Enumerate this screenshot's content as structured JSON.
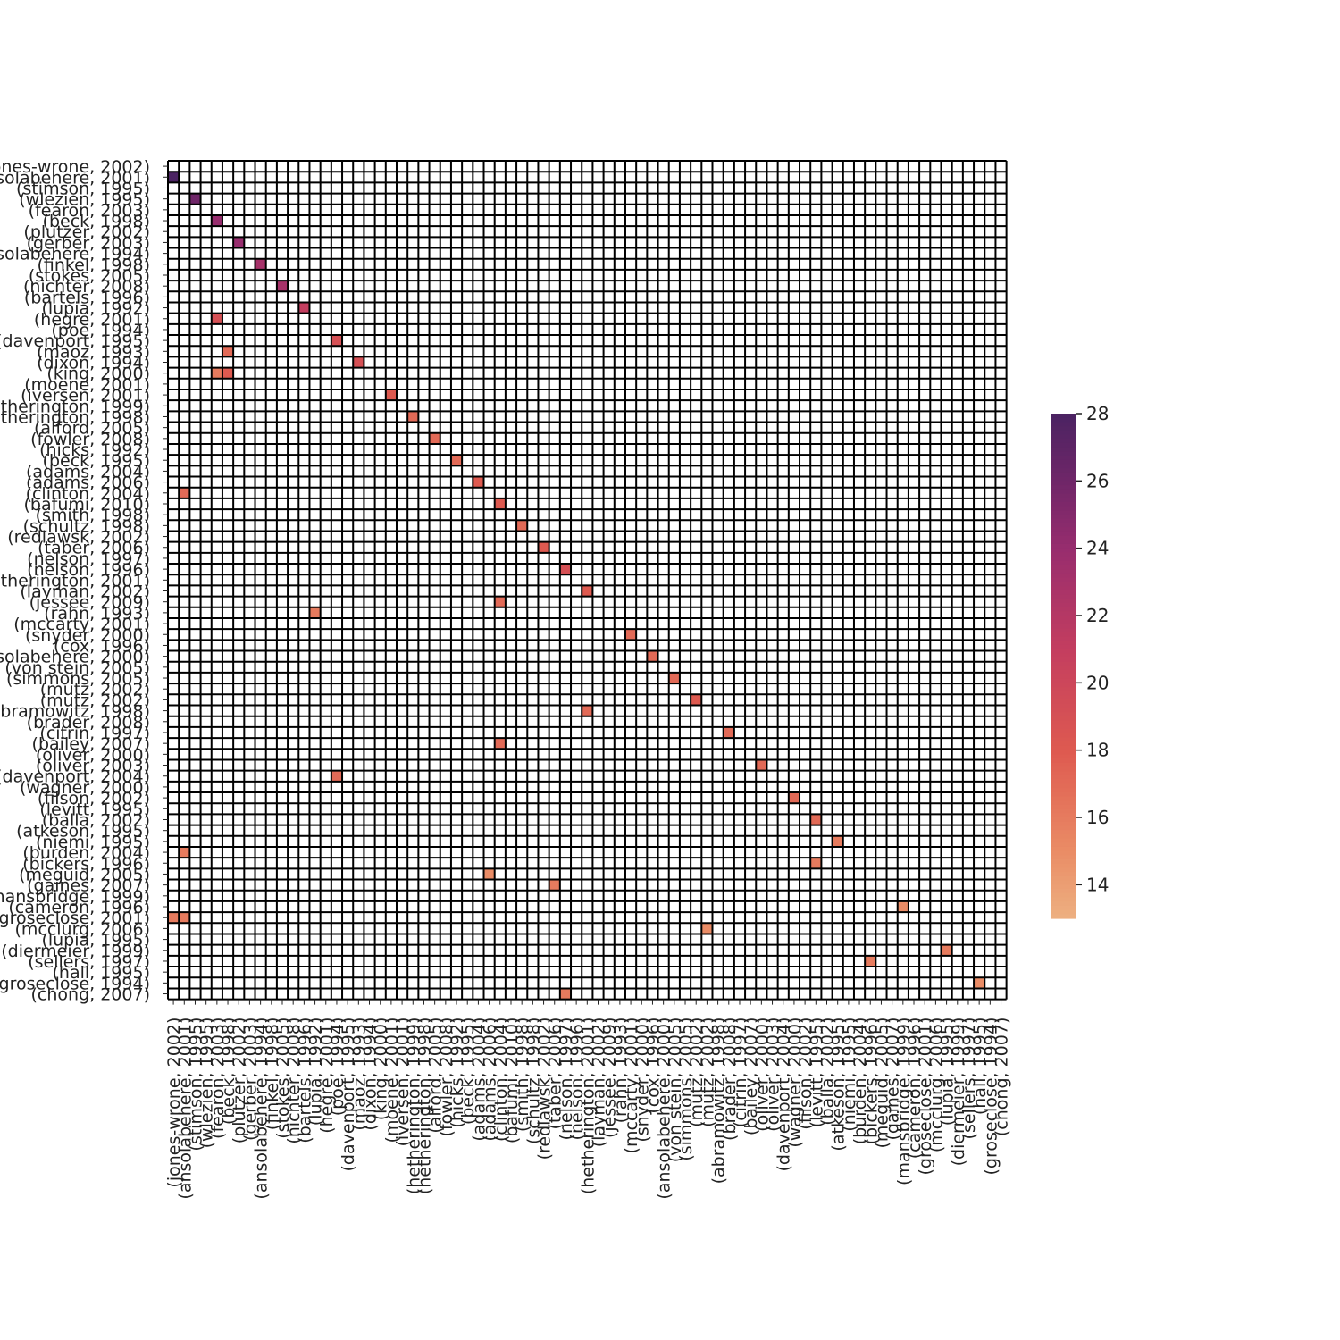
{
  "chart_data": {
    "type": "heatmap",
    "title": "",
    "xlabel": "",
    "ylabel": "",
    "labels": [
      "(jones-wrone, 2002)",
      "(ansolabehere, 2001)",
      "(stimson, 1995)",
      "(wlezien, 1995)",
      "(fearon, 2003)",
      "(beck, 1998)",
      "(plutzer, 2002)",
      "(gerber, 2003)",
      "(ansolabehere, 1994)",
      "(finkel, 1998)",
      "(stokes, 2005)",
      "(nichter, 2008)",
      "(bartels, 1996)",
      "(lupia, 1992)",
      "(hegre, 2001)",
      "(poe, 1994)",
      "(davenport, 1995)",
      "(maoz, 1993)",
      "(dixon, 1994)",
      "(king, 2000)",
      "(moene, 2001)",
      "(iversen, 2001)",
      "(hetherington, 1999)",
      "(hetherington, 1998)",
      "(alford, 2005)",
      "(fowler, 2008)",
      "(hicks, 1992)",
      "(beck, 1995)",
      "(adams, 2004)",
      "(adams, 2006)",
      "(clinton, 2004)",
      "(bafumi, 2010)",
      "(smith, 1998)",
      "(schultz, 1998)",
      "(redlawsk, 2002)",
      "(taber, 2006)",
      "(nelson, 1997)",
      "(nelson, 1996)",
      "(hetherington, 2001)",
      "(layman, 2002)",
      "(jessee, 2009)",
      "(rahn, 1993)",
      "(mccarty, 2001)",
      "(snyder, 2000)",
      "(cox, 1996)",
      "(ansolabehere, 2000)",
      "(von stein, 2005)",
      "(simmons, 2005)",
      "(mutz, 2002)",
      "(mutz, 2002)",
      "(abramowitz, 1998)",
      "(brader, 2008)",
      "(citrin, 1997)",
      "(bailey, 2007)",
      "(oliver, 2000)",
      "(oliver, 2003)",
      "(davenport, 2004)",
      "(wagner, 2000)",
      "(filson, 2002)",
      "(levitt, 1995)",
      "(balla, 2002)",
      "(atkeson, 1995)",
      "(niemi, 1995)",
      "(burden, 2004)",
      "(bickers, 1996)",
      "(meguid, 2005)",
      "(gaines, 2007)",
      "(mansbridge, 1999)",
      "(cameron, 1996)",
      "(groseclose, 2001)",
      "(mcclurg, 2006)",
      "(lupia, 1995)",
      "(diermeier, 1999)",
      "(sellers, 1997)",
      "(hall, 1995)",
      "(groseclose, 1994)",
      "(chong, 2007)"
    ],
    "cells": [
      {
        "row": 1,
        "col": 0,
        "value": 28
      },
      {
        "row": 3,
        "col": 2,
        "value": 26
      },
      {
        "row": 5,
        "col": 4,
        "value": 24
      },
      {
        "row": 7,
        "col": 6,
        "value": 24
      },
      {
        "row": 9,
        "col": 8,
        "value": 23
      },
      {
        "row": 11,
        "col": 10,
        "value": 23
      },
      {
        "row": 13,
        "col": 12,
        "value": 21
      },
      {
        "row": 14,
        "col": 4,
        "value": 19
      },
      {
        "row": 16,
        "col": 15,
        "value": 19
      },
      {
        "row": 17,
        "col": 5,
        "value": 17
      },
      {
        "row": 18,
        "col": 17,
        "value": 19
      },
      {
        "row": 19,
        "col": 4,
        "value": 16
      },
      {
        "row": 19,
        "col": 5,
        "value": 18
      },
      {
        "row": 21,
        "col": 20,
        "value": 18
      },
      {
        "row": 23,
        "col": 22,
        "value": 17
      },
      {
        "row": 25,
        "col": 24,
        "value": 17
      },
      {
        "row": 27,
        "col": 26,
        "value": 17
      },
      {
        "row": 29,
        "col": 28,
        "value": 18
      },
      {
        "row": 30,
        "col": 1,
        "value": 17
      },
      {
        "row": 31,
        "col": 30,
        "value": 18
      },
      {
        "row": 33,
        "col": 32,
        "value": 17
      },
      {
        "row": 35,
        "col": 34,
        "value": 18
      },
      {
        "row": 37,
        "col": 36,
        "value": 19
      },
      {
        "row": 39,
        "col": 38,
        "value": 18
      },
      {
        "row": 40,
        "col": 30,
        "value": 17
      },
      {
        "row": 41,
        "col": 13,
        "value": 16
      },
      {
        "row": 43,
        "col": 42,
        "value": 17
      },
      {
        "row": 45,
        "col": 44,
        "value": 17
      },
      {
        "row": 47,
        "col": 46,
        "value": 17
      },
      {
        "row": 49,
        "col": 48,
        "value": 18
      },
      {
        "row": 50,
        "col": 38,
        "value": 17
      },
      {
        "row": 52,
        "col": 51,
        "value": 17
      },
      {
        "row": 53,
        "col": 30,
        "value": 17
      },
      {
        "row": 55,
        "col": 54,
        "value": 17
      },
      {
        "row": 56,
        "col": 15,
        "value": 17
      },
      {
        "row": 58,
        "col": 57,
        "value": 17
      },
      {
        "row": 60,
        "col": 59,
        "value": 17
      },
      {
        "row": 62,
        "col": 61,
        "value": 16
      },
      {
        "row": 63,
        "col": 1,
        "value": 16
      },
      {
        "row": 64,
        "col": 59,
        "value": 16
      },
      {
        "row": 65,
        "col": 29,
        "value": 15
      },
      {
        "row": 66,
        "col": 35,
        "value": 16
      },
      {
        "row": 68,
        "col": 67,
        "value": 15
      },
      {
        "row": 69,
        "col": 0,
        "value": 16
      },
      {
        "row": 69,
        "col": 1,
        "value": 16
      },
      {
        "row": 70,
        "col": 49,
        "value": 15
      },
      {
        "row": 72,
        "col": 71,
        "value": 16
      },
      {
        "row": 73,
        "col": 64,
        "value": 16
      },
      {
        "row": 75,
        "col": 74,
        "value": 15
      },
      {
        "row": 76,
        "col": 36,
        "value": 16
      }
    ],
    "colorbar": {
      "min": 13,
      "max": 28,
      "ticks": [
        14,
        16,
        18,
        20,
        22,
        24,
        26,
        28
      ],
      "colormap": "flare"
    },
    "colors": {
      "empty_cell": "#ffffff",
      "grid_line": "#000000",
      "low": "#edb081",
      "high": "#4b2362"
    },
    "grid": true,
    "legend": "colorbar-right"
  }
}
